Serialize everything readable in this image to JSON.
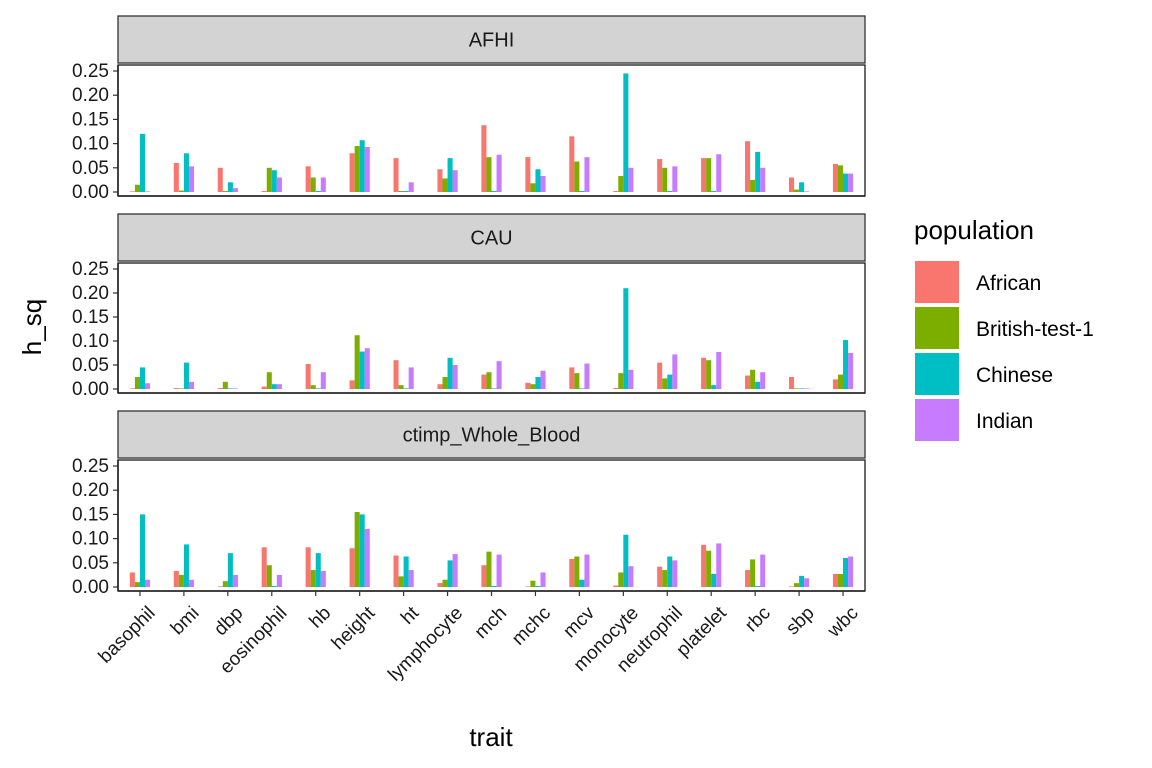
{
  "chart_data": {
    "type": "bar",
    "layout": "faceted-grouped-bar",
    "xlabel": "trait",
    "ylabel": "h_sq",
    "ylim": [
      0,
      0.25
    ],
    "yticks": [
      "0.00",
      "0.05",
      "0.10",
      "0.15",
      "0.20",
      "0.25"
    ],
    "legend": {
      "title": "population",
      "position": "right"
    },
    "grid": false,
    "categories": [
      "basophil",
      "bmi",
      "dbp",
      "eosinophil",
      "hb",
      "height",
      "ht",
      "lymphocyte",
      "mch",
      "mchc",
      "mcv",
      "monocyte",
      "neutrophil",
      "platelet",
      "rbc",
      "sbp",
      "wbc"
    ],
    "series": [
      {
        "name": "African",
        "color": "#F8766D"
      },
      {
        "name": "British-test-1",
        "color": "#7CAE00"
      },
      {
        "name": "Chinese",
        "color": "#00BFC4"
      },
      {
        "name": "Indian",
        "color": "#C77CFF"
      }
    ],
    "panels": [
      {
        "strip": "AFHI",
        "values": {
          "African": [
            0.001,
            0.06,
            0.05,
            0.002,
            0.053,
            0.08,
            0.07,
            0.047,
            0.138,
            0.072,
            0.115,
            0.002,
            0.068,
            0.07,
            0.105,
            0.03,
            0.058
          ],
          "British-test-1": [
            0.015,
            0.003,
            0.002,
            0.05,
            0.03,
            0.095,
            0.002,
            0.028,
            0.072,
            0.018,
            0.063,
            0.033,
            0.05,
            0.07,
            0.025,
            0.005,
            0.055
          ],
          "Chinese": [
            0.12,
            0.08,
            0.02,
            0.045,
            0.002,
            0.107,
            0.002,
            0.07,
            0.002,
            0.047,
            0.002,
            0.245,
            0.002,
            0.002,
            0.083,
            0.02,
            0.038
          ],
          "Indian": [
            0.001,
            0.053,
            0.008,
            0.03,
            0.03,
            0.093,
            0.02,
            0.045,
            0.077,
            0.033,
            0.072,
            0.05,
            0.053,
            0.078,
            0.05,
            0.001,
            0.038
          ]
        }
      },
      {
        "strip": "CAU",
        "values": {
          "African": [
            0.001,
            0.002,
            0.002,
            0.005,
            0.052,
            0.018,
            0.06,
            0.01,
            0.03,
            0.013,
            0.045,
            0.002,
            0.055,
            0.065,
            0.028,
            0.025,
            0.02
          ],
          "British-test-1": [
            0.025,
            0.001,
            0.015,
            0.035,
            0.008,
            0.112,
            0.008,
            0.025,
            0.035,
            0.01,
            0.033,
            0.033,
            0.022,
            0.06,
            0.04,
            0.001,
            0.03
          ],
          "Chinese": [
            0.045,
            0.055,
            0.001,
            0.01,
            0.001,
            0.078,
            0.001,
            0.065,
            0.001,
            0.025,
            0.001,
            0.21,
            0.03,
            0.008,
            0.015,
            0.001,
            0.102
          ],
          "Indian": [
            0.012,
            0.015,
            0.001,
            0.01,
            0.035,
            0.085,
            0.045,
            0.05,
            0.058,
            0.038,
            0.053,
            0.04,
            0.072,
            0.077,
            0.035,
            0.001,
            0.075
          ]
        }
      },
      {
        "strip": "ctimp_Whole_Blood",
        "values": {
          "African": [
            0.03,
            0.033,
            0.001,
            0.082,
            0.082,
            0.08,
            0.065,
            0.008,
            0.045,
            0.001,
            0.058,
            0.003,
            0.042,
            0.087,
            0.035,
            0.001,
            0.027
          ],
          "British-test-1": [
            0.01,
            0.025,
            0.012,
            0.045,
            0.035,
            0.155,
            0.022,
            0.015,
            0.073,
            0.013,
            0.063,
            0.03,
            0.035,
            0.075,
            0.057,
            0.008,
            0.027
          ],
          "Chinese": [
            0.15,
            0.088,
            0.07,
            0.002,
            0.07,
            0.15,
            0.063,
            0.055,
            0.002,
            0.002,
            0.015,
            0.108,
            0.063,
            0.027,
            0.002,
            0.023,
            0.06
          ],
          "Indian": [
            0.015,
            0.015,
            0.025,
            0.025,
            0.033,
            0.12,
            0.035,
            0.068,
            0.067,
            0.03,
            0.067,
            0.043,
            0.055,
            0.09,
            0.067,
            0.018,
            0.063
          ]
        }
      }
    ]
  }
}
